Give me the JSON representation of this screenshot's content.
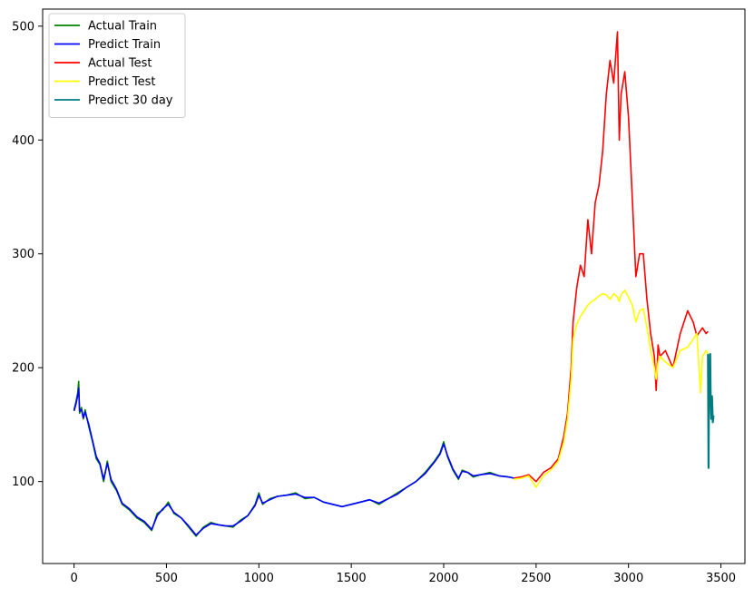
{
  "chart_data": {
    "type": "line",
    "title": "",
    "xlabel": "",
    "ylabel": "",
    "xlim": [
      -170,
      3630
    ],
    "ylim": [
      28,
      515
    ],
    "xticks": [
      0,
      500,
      1000,
      1500,
      2000,
      2500,
      3000,
      3500
    ],
    "xtick_labels": [
      "0",
      "500",
      "1000",
      "1500",
      "2000",
      "2500",
      "3000",
      "3500"
    ],
    "yticks": [
      100,
      200,
      300,
      400,
      500
    ],
    "ytick_labels": [
      "100",
      "200",
      "300",
      "400",
      "500"
    ],
    "grid": false,
    "legend_position": "top-left",
    "series": [
      {
        "name": "Actual Train",
        "color": "#008000",
        "x": [
          0,
          10,
          20,
          25,
          30,
          40,
          50,
          60,
          80,
          100,
          120,
          140,
          160,
          180,
          200,
          230,
          260,
          300,
          340,
          380,
          420,
          450,
          480,
          510,
          540,
          580,
          620,
          660,
          700,
          740,
          780,
          820,
          860,
          900,
          940,
          980,
          1000,
          1020,
          1060,
          1100,
          1150,
          1200,
          1250,
          1300,
          1350,
          1400,
          1450,
          1500,
          1550,
          1600,
          1650,
          1700,
          1750,
          1800,
          1850,
          1900,
          1950,
          1980,
          2000,
          2020,
          2050,
          2080,
          2100,
          2130,
          2160,
          2200,
          2250,
          2300,
          2350,
          2380
        ],
        "y": [
          163,
          170,
          178,
          188,
          160,
          165,
          155,
          163,
          148,
          135,
          120,
          115,
          100,
          118,
          100,
          92,
          80,
          75,
          68,
          64,
          57,
          72,
          75,
          82,
          72,
          68,
          60,
          52,
          60,
          64,
          62,
          61,
          60,
          66,
          70,
          80,
          90,
          80,
          85,
          87,
          88,
          90,
          85,
          86,
          82,
          80,
          78,
          80,
          82,
          84,
          80,
          85,
          90,
          95,
          100,
          108,
          118,
          125,
          135,
          122,
          110,
          102,
          110,
          108,
          104,
          106,
          108,
          105,
          104,
          103
        ]
      },
      {
        "name": "Predict Train",
        "color": "#0000ff",
        "x": [
          0,
          10,
          20,
          25,
          30,
          40,
          50,
          60,
          80,
          100,
          120,
          140,
          160,
          180,
          200,
          230,
          260,
          300,
          340,
          380,
          420,
          450,
          480,
          510,
          540,
          580,
          620,
          660,
          700,
          740,
          780,
          820,
          860,
          900,
          940,
          980,
          1000,
          1020,
          1060,
          1100,
          1150,
          1200,
          1250,
          1300,
          1350,
          1400,
          1450,
          1500,
          1550,
          1600,
          1650,
          1700,
          1750,
          1800,
          1850,
          1900,
          1950,
          1980,
          2000,
          2020,
          2050,
          2080,
          2100,
          2130,
          2160,
          2200,
          2250,
          2300,
          2350,
          2380
        ],
        "y": [
          162,
          168,
          176,
          182,
          162,
          163,
          156,
          161,
          150,
          136,
          122,
          116,
          102,
          116,
          102,
          93,
          81,
          76,
          69,
          65,
          58,
          70,
          76,
          80,
          73,
          68,
          61,
          53,
          59,
          63,
          62,
          61,
          61,
          65,
          70,
          79,
          88,
          81,
          84,
          87,
          88,
          89,
          86,
          86,
          82,
          80,
          78,
          80,
          82,
          84,
          81,
          85,
          89,
          95,
          100,
          107,
          117,
          124,
          133,
          123,
          111,
          103,
          109,
          108,
          105,
          106,
          107,
          105,
          104,
          103
        ]
      },
      {
        "name": "Actual Test",
        "color": "#ff0000",
        "x": [
          2380,
          2420,
          2460,
          2500,
          2540,
          2580,
          2620,
          2650,
          2670,
          2690,
          2700,
          2720,
          2740,
          2760,
          2780,
          2800,
          2820,
          2840,
          2860,
          2880,
          2900,
          2920,
          2940,
          2950,
          2960,
          2980,
          3000,
          3020,
          3040,
          3060,
          3080,
          3100,
          3120,
          3140,
          3150,
          3160,
          3170,
          3200,
          3240,
          3280,
          3320,
          3350,
          3370,
          3400,
          3420,
          3430
        ],
        "y": [
          103,
          104,
          106,
          100,
          108,
          112,
          120,
          140,
          160,
          200,
          240,
          270,
          290,
          280,
          330,
          300,
          345,
          360,
          390,
          440,
          470,
          450,
          495,
          400,
          440,
          460,
          420,
          350,
          280,
          300,
          300,
          260,
          230,
          210,
          180,
          220,
          210,
          215,
          200,
          230,
          250,
          240,
          228,
          235,
          230,
          232
        ]
      },
      {
        "name": "Predict Test",
        "color": "#ffff00",
        "x": [
          2380,
          2420,
          2460,
          2500,
          2540,
          2580,
          2620,
          2650,
          2670,
          2690,
          2700,
          2720,
          2740,
          2760,
          2780,
          2800,
          2820,
          2840,
          2860,
          2880,
          2900,
          2920,
          2940,
          2950,
          2960,
          2980,
          3000,
          3020,
          3040,
          3060,
          3080,
          3100,
          3120,
          3140,
          3150,
          3160,
          3170,
          3200,
          3240,
          3280,
          3320,
          3350,
          3370,
          3390,
          3400,
          3420,
          3430
        ],
        "y": [
          102,
          103,
          105,
          95,
          105,
          110,
          118,
          135,
          155,
          190,
          225,
          238,
          245,
          250,
          255,
          258,
          260,
          263,
          265,
          264,
          260,
          265,
          262,
          258,
          264,
          268,
          262,
          255,
          240,
          250,
          252,
          235,
          215,
          200,
          190,
          205,
          210,
          205,
          200,
          215,
          218,
          225,
          230,
          178,
          210,
          215,
          212
        ]
      },
      {
        "name": "Predict 30 day",
        "color": "#007b80",
        "x": [
          3430,
          3433,
          3436,
          3439,
          3442,
          3445,
          3448,
          3452,
          3456,
          3460
        ],
        "y": [
          212,
          112,
          205,
          185,
          212,
          170,
          155,
          175,
          152,
          158
        ]
      }
    ]
  }
}
